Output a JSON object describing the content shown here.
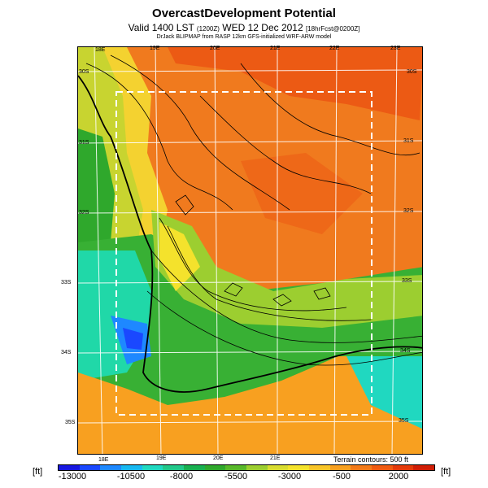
{
  "title": "OvercastDevelopment Potential",
  "subtitle_main": "Valid 1400 LST",
  "subtitle_time": "(1200Z)",
  "subtitle_date": "WED 12 Dec 2012",
  "subtitle_forecast": "[18hrFcst@0200Z]",
  "credit": "DrJack BLIPMAP from RASP 12km GFS-initialized WRF-ARW model",
  "top_lon_labels": [
    "18E",
    "19E",
    "20E",
    "21E",
    "22E",
    "23E"
  ],
  "bottom_lon_labels": [
    "18E",
    "19E",
    "20E",
    "21E"
  ],
  "left_lat_labels": [
    "30S",
    "31S",
    "32S",
    "33S",
    "34S",
    "35S"
  ],
  "right_lat_labels": [
    "30S",
    "31S",
    "32S",
    "33S",
    "34S",
    "35S"
  ],
  "terrain_label": "Terrain contours: 500 ft",
  "unit_left": "[ft]",
  "unit_right": "[ft]",
  "colorbar_ticks": [
    "-13000",
    "-10500",
    "-8000",
    "-5500",
    "-3000",
    "-500",
    "2000"
  ],
  "colorbar_colors": [
    "#1818e0",
    "#1a48ff",
    "#1e88ff",
    "#17b8f0",
    "#20d8c0",
    "#22c88a",
    "#18b050",
    "#2fa82c",
    "#58b82a",
    "#9cce30",
    "#d8dc30",
    "#f4e22c",
    "#f8c428",
    "#f8a020",
    "#f47a18",
    "#f05a10",
    "#e43a0a",
    "#d01e06"
  ],
  "colors": {
    "ocean_west": "#22c88a",
    "ocean_deep": "#1a48ff",
    "inland_orange": "#f07020",
    "frame_dash": "#ffffff"
  }
}
